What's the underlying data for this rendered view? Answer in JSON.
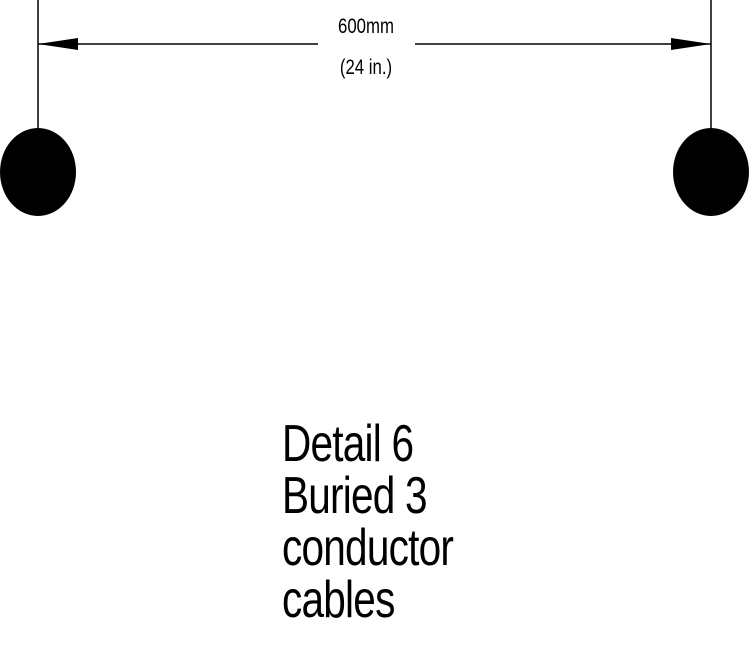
{
  "dimension": {
    "metric": "600mm",
    "imperial": "(24 in.)"
  },
  "caption": {
    "line1": "Detail 6",
    "line2": "Buried 3",
    "line3": "conductor",
    "line4": "cables"
  },
  "colors": {
    "ink": "#000000",
    "background": "#ffffff"
  }
}
